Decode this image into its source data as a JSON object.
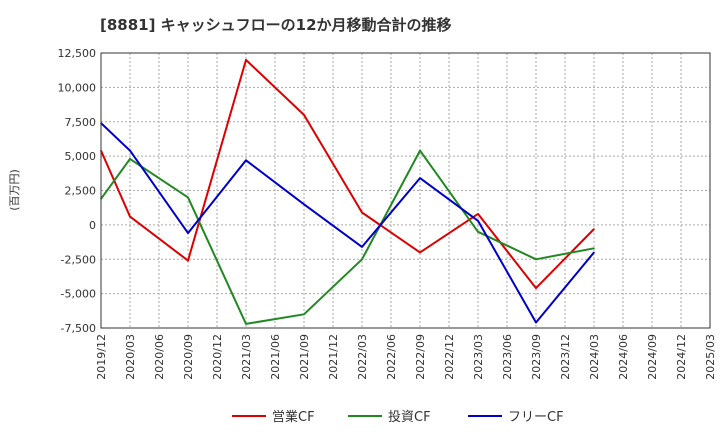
{
  "chart_data": {
    "type": "line",
    "title": "[8881]  キャッシュフローの12か月移動合計の推移",
    "ylabel": "(百万円)",
    "xlabel": "",
    "ylim": [
      -7500,
      12500
    ],
    "yticks": [
      12500,
      10000,
      7500,
      5000,
      2500,
      0,
      -2500,
      -5000,
      -7500
    ],
    "ytick_labels": [
      "12,500",
      "10,000",
      "7,500",
      "5,000",
      "2,500",
      "0",
      "-2,500",
      "-5,000",
      "-7,500"
    ],
    "categories": [
      "2019/12",
      "2020/03",
      "2020/06",
      "2020/09",
      "2020/12",
      "2021/03",
      "2021/06",
      "2021/09",
      "2021/12",
      "2022/03",
      "2022/06",
      "2022/09",
      "2022/12",
      "2023/03",
      "2023/06",
      "2023/09",
      "2023/12",
      "2024/03",
      "2024/06",
      "2024/09",
      "2024/12",
      "2025/03"
    ],
    "grid": true,
    "legend_position": "bottom",
    "series": [
      {
        "name": "営業CF",
        "color": "#dd0000",
        "x": [
          "2019/12",
          "2020/03",
          "2020/09",
          "2021/03",
          "2021/09",
          "2022/03",
          "2022/09",
          "2023/03",
          "2023/09",
          "2024/03"
        ],
        "values": [
          5400,
          600,
          -2600,
          12000,
          8000,
          900,
          -2000,
          800,
          -4600,
          -300
        ]
      },
      {
        "name": "投資CF",
        "color": "#228822",
        "x": [
          "2019/12",
          "2020/03",
          "2020/09",
          "2021/03",
          "2021/09",
          "2022/03",
          "2022/09",
          "2023/03",
          "2023/09",
          "2024/03"
        ],
        "values": [
          1900,
          4800,
          2000,
          -7200,
          -6500,
          -2500,
          5400,
          -500,
          -2500,
          -1700
        ]
      },
      {
        "name": "フリーCF",
        "color": "#0000cc",
        "x": [
          "2019/12",
          "2020/03",
          "2020/09",
          "2021/03",
          "2021/09",
          "2022/03",
          "2022/09",
          "2023/03",
          "2023/09",
          "2024/03"
        ],
        "values": [
          7400,
          5400,
          -600,
          4700,
          1500,
          -1600,
          3400,
          300,
          -7100,
          -2000
        ]
      }
    ]
  }
}
